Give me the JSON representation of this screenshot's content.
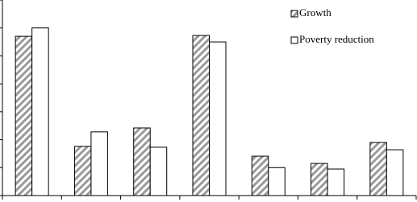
{
  "chart_data": {
    "type": "bar",
    "categories": [
      null,
      null,
      null,
      null,
      null,
      null,
      null
    ],
    "series": [
      {
        "name": "Growth",
        "color": "#9a9a9a",
        "hatch": true,
        "values": [
          5.7,
          1.76,
          2.42,
          5.73,
          1.41,
          1.15,
          1.9
        ]
      },
      {
        "name": "Poverty reduction",
        "color": "#ffffff",
        "hatch": false,
        "values": [
          6.0,
          2.28,
          1.73,
          5.5,
          1.0,
          0.95,
          1.64
        ]
      }
    ],
    "ylim": [
      0,
      7
    ],
    "yticks": [
      0,
      1,
      2,
      3,
      4,
      5,
      6,
      7
    ],
    "grid": false,
    "legend": "top-right"
  }
}
